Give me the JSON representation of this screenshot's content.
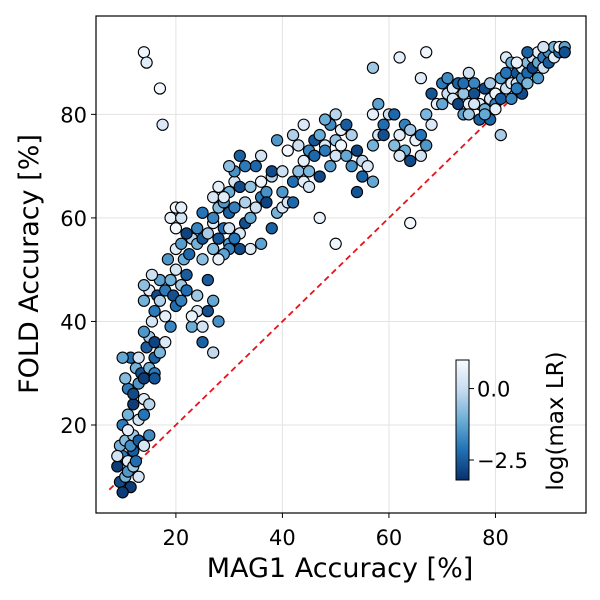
{
  "chart_data": {
    "type": "scatter",
    "title": "",
    "xlabel": "MAG1 Accuracy [%]",
    "ylabel": "FOLD Accuracy [%]",
    "xlim": [
      5,
      97
    ],
    "ylim": [
      3,
      99
    ],
    "xticks": [
      20,
      40,
      60,
      80
    ],
    "yticks": [
      20,
      40,
      60,
      80
    ],
    "grid": true,
    "reference_line": {
      "style": "dashed",
      "color": "#e8121b",
      "from": [
        7.5,
        7.5
      ],
      "to": [
        93.5,
        93.5
      ]
    },
    "colorbar": {
      "label": "log(max LR)",
      "range": [
        -3.2,
        1.0
      ],
      "ticks": [
        0.0,
        -2.5
      ],
      "tick_labels": [
        "0.0",
        "−2.5"
      ],
      "colors": [
        "#08306b",
        "#2171b5",
        "#6baed6",
        "#c6dbef",
        "#f7fbff"
      ]
    },
    "points": [
      [
        14,
        92,
        0.8
      ],
      [
        14.5,
        90,
        0.5
      ],
      [
        17,
        85,
        0.9
      ],
      [
        17.5,
        78,
        0.4
      ],
      [
        9,
        12,
        -3
      ],
      [
        9.5,
        9,
        -2.8
      ],
      [
        10,
        14,
        -2
      ],
      [
        10.5,
        10,
        -1
      ],
      [
        11,
        13,
        0.5
      ],
      [
        11.5,
        8,
        -3
      ],
      [
        12,
        15,
        -2.5
      ],
      [
        9.5,
        16,
        -1
      ],
      [
        10,
        7,
        -3
      ],
      [
        11,
        11,
        -1.5
      ],
      [
        12,
        12,
        -0.5
      ],
      [
        13,
        10,
        0.3
      ],
      [
        12.5,
        13,
        -2.2
      ],
      [
        10.5,
        17,
        -0.8
      ],
      [
        9,
        14,
        0.2
      ],
      [
        11.5,
        16,
        -1.7
      ],
      [
        10,
        20,
        -2
      ],
      [
        11,
        22,
        -1
      ],
      [
        12,
        24,
        -3
      ],
      [
        13,
        21,
        0.2
      ],
      [
        11,
        27,
        -2
      ],
      [
        10.5,
        29,
        -0.8
      ],
      [
        12,
        26,
        -2.8
      ],
      [
        13,
        28,
        -1.5
      ],
      [
        14,
        25,
        0.5
      ],
      [
        12.5,
        31,
        -1
      ],
      [
        11.5,
        33,
        -2.2
      ],
      [
        13.5,
        30,
        -2.7
      ],
      [
        10,
        33,
        -1.2
      ],
      [
        12,
        18,
        -0.5
      ],
      [
        13,
        17,
        -2.5
      ],
      [
        14,
        16,
        0.3
      ],
      [
        15,
        18,
        -1.7
      ],
      [
        14,
        22,
        -2.1
      ],
      [
        15,
        24,
        -0.2
      ],
      [
        11,
        19,
        0.6
      ],
      [
        14,
        29,
        -3
      ],
      [
        15,
        31,
        -1
      ],
      [
        16,
        30,
        -2
      ],
      [
        13,
        33,
        0.2
      ],
      [
        14.5,
        35,
        -2.5
      ],
      [
        15,
        37,
        -0.5
      ],
      [
        16,
        36,
        -2.9
      ],
      [
        14,
        38,
        -1.5
      ],
      [
        15.5,
        40,
        0.3
      ],
      [
        16,
        42,
        -2
      ],
      [
        14,
        44,
        -1
      ],
      [
        15,
        46,
        0.5
      ],
      [
        16.5,
        45,
        -2.8
      ],
      [
        17,
        48,
        -1.3
      ],
      [
        15.5,
        49,
        0.1
      ],
      [
        14,
        47,
        -0.7
      ],
      [
        16,
        33,
        -2.4
      ],
      [
        17,
        34,
        -0.9
      ],
      [
        18,
        36,
        0.4
      ],
      [
        16,
        29,
        -2.6
      ],
      [
        18,
        46,
        -2
      ],
      [
        19,
        48,
        -1
      ],
      [
        20,
        50,
        0.3
      ],
      [
        18.5,
        52,
        -1.5
      ],
      [
        19.5,
        45,
        -2.7
      ],
      [
        21,
        47,
        -0.5
      ],
      [
        20,
        43,
        -2.2
      ],
      [
        18,
        41,
        0.6
      ],
      [
        21.5,
        52,
        -1.1
      ],
      [
        22,
        49,
        -2.5
      ],
      [
        19,
        39,
        -1.8
      ],
      [
        17,
        44,
        -0.3
      ],
      [
        20,
        54,
        0.5
      ],
      [
        21,
        55,
        -1.4
      ],
      [
        22.5,
        53,
        -2.3
      ],
      [
        23,
        56,
        -0.2
      ],
      [
        22,
        57,
        -2.9
      ],
      [
        19,
        60,
        0.7
      ],
      [
        20,
        62,
        0.9
      ],
      [
        21,
        60,
        0.2
      ],
      [
        24,
        55,
        -1
      ],
      [
        25,
        56,
        -2.6
      ],
      [
        26,
        57,
        -0.4
      ],
      [
        24,
        58,
        -1.8
      ],
      [
        27,
        59,
        0.5
      ],
      [
        25,
        61,
        -2.1
      ],
      [
        28,
        62,
        -0.8
      ],
      [
        27,
        64,
        0.3
      ],
      [
        29,
        63,
        -1.5
      ],
      [
        30,
        61,
        -2.4
      ],
      [
        28,
        66,
        0.6
      ],
      [
        30,
        65,
        -1.1
      ],
      [
        31,
        67,
        0.2
      ],
      [
        32,
        66,
        -2.8
      ],
      [
        31,
        62,
        -1.9
      ],
      [
        33,
        63,
        -0.3
      ],
      [
        29,
        58,
        -2.2
      ],
      [
        30,
        55,
        -1.4
      ],
      [
        32,
        57,
        0.4
      ],
      [
        33,
        59,
        -2.7
      ],
      [
        34,
        60,
        -1.2
      ],
      [
        35,
        62,
        0.1
      ],
      [
        36,
        64,
        -2
      ],
      [
        34,
        66,
        -0.6
      ],
      [
        36,
        67,
        0.8
      ],
      [
        37,
        65,
        -1.6
      ],
      [
        35,
        70,
        -2.3
      ],
      [
        38,
        68,
        -0.2
      ],
      [
        37,
        63,
        -2.9
      ],
      [
        39,
        61,
        -1
      ],
      [
        40,
        62,
        0.3
      ],
      [
        38,
        58,
        -2.4
      ],
      [
        36,
        55,
        -1.3
      ],
      [
        34,
        54,
        0.5
      ],
      [
        32,
        54,
        -2.8
      ],
      [
        30,
        54,
        -1.9
      ],
      [
        25,
        52,
        -0.7
      ],
      [
        26,
        48,
        -2.5
      ],
      [
        27,
        44,
        -1.2
      ],
      [
        24,
        42,
        0.4
      ],
      [
        22,
        46,
        -2.2
      ],
      [
        23,
        39,
        -1.1
      ],
      [
        25,
        39,
        0.2
      ],
      [
        26,
        42,
        -2.7
      ],
      [
        24,
        45,
        -0.5
      ],
      [
        28,
        40,
        -1.6
      ],
      [
        27,
        34,
        -0.1
      ],
      [
        25,
        36,
        -2.4
      ],
      [
        23,
        41,
        0.7
      ],
      [
        21,
        44,
        -1.9
      ],
      [
        28,
        56,
        -2.6
      ],
      [
        29,
        53,
        -1.3
      ],
      [
        30,
        58,
        0.2
      ],
      [
        31,
        56,
        -2.1
      ],
      [
        27,
        54,
        -0.8
      ],
      [
        40,
        65,
        -1.5
      ],
      [
        41,
        63,
        0.3
      ],
      [
        42,
        67,
        -2.2
      ],
      [
        43,
        69,
        -0.7
      ],
      [
        44,
        71,
        0.6
      ],
      [
        45,
        73,
        -1.8
      ],
      [
        43,
        74,
        0.1
      ],
      [
        46,
        75,
        -2.6
      ],
      [
        47,
        76,
        -1.1
      ],
      [
        48,
        74,
        0.4
      ],
      [
        46,
        72,
        -2.3
      ],
      [
        45,
        69,
        -0.9
      ],
      [
        44,
        67,
        0.5
      ],
      [
        47,
        68,
        -2.8
      ],
      [
        49,
        70,
        -1.4
      ],
      [
        50,
        72,
        0.2
      ],
      [
        48,
        73,
        -2
      ],
      [
        50,
        75,
        -0.6
      ],
      [
        51,
        77,
        0.7
      ],
      [
        49,
        78,
        -1.7
      ],
      [
        52,
        78,
        -2.5
      ],
      [
        53,
        76,
        -0.3
      ],
      [
        51,
        74,
        0.8
      ],
      [
        52,
        72,
        -1.2
      ],
      [
        54,
        73,
        -2.9
      ],
      [
        55,
        71,
        -0.1
      ],
      [
        53,
        70,
        -1.6
      ],
      [
        56,
        70,
        0.4
      ],
      [
        55,
        68,
        -2.4
      ],
      [
        57,
        74,
        -1
      ],
      [
        58,
        76,
        0.3
      ],
      [
        59,
        78,
        -2.2
      ],
      [
        57,
        80,
        0.6
      ],
      [
        58,
        82,
        -1.3
      ],
      [
        60,
        80,
        0.1
      ],
      [
        59,
        76,
        -2.7
      ],
      [
        61,
        74,
        -0.8
      ],
      [
        62,
        76,
        0.5
      ],
      [
        63,
        78,
        -1.9
      ],
      [
        61,
        80,
        -2.3
      ],
      [
        64,
        77,
        -0.4
      ],
      [
        65,
        75,
        0.7
      ],
      [
        63,
        73,
        -1.1
      ],
      [
        64,
        71,
        -2.8
      ],
      [
        66,
        72,
        0.2
      ],
      [
        67,
        74,
        -1.5
      ],
      [
        66,
        76,
        -2.1
      ],
      [
        68,
        78,
        0.4
      ],
      [
        67,
        80,
        -0.9
      ],
      [
        69,
        82,
        0.6
      ],
      [
        68,
        84,
        -2.6
      ],
      [
        70,
        82,
        -1.2
      ],
      [
        71,
        84,
        0.1
      ],
      [
        70,
        86,
        -2
      ],
      [
        72,
        85,
        0.5
      ],
      [
        71,
        87,
        -1.7
      ],
      [
        73,
        86,
        -2.4
      ],
      [
        72,
        83,
        0.3
      ],
      [
        74,
        84,
        -0.6
      ],
      [
        73,
        82,
        -2.9
      ],
      [
        74,
        80,
        -1.3
      ],
      [
        75,
        82,
        0.7
      ],
      [
        74,
        86,
        -2.2
      ],
      [
        75,
        88,
        0.2
      ],
      [
        76,
        86,
        -1.8
      ],
      [
        76,
        84,
        -2.7
      ],
      [
        75,
        80,
        -0.5
      ],
      [
        77,
        82,
        0.6
      ],
      [
        77,
        79,
        -2.4
      ],
      [
        78,
        81,
        -1
      ],
      [
        79,
        83,
        0.3
      ],
      [
        78,
        85,
        -2.8
      ],
      [
        79,
        86,
        -0.4
      ],
      [
        80,
        84,
        0.8
      ],
      [
        80,
        82,
        -1.9
      ],
      [
        81,
        83,
        -2.5
      ],
      [
        82,
        85,
        0.1
      ],
      [
        81,
        87,
        -1.4
      ],
      [
        82,
        88,
        -2.1
      ],
      [
        83,
        86,
        0.5
      ],
      [
        82,
        91,
        0.4
      ],
      [
        83,
        90,
        -1.1
      ],
      [
        84,
        88,
        -2.6
      ],
      [
        84,
        86,
        0.2
      ],
      [
        85,
        87,
        -1.7
      ],
      [
        85,
        89,
        0.7
      ],
      [
        86,
        88,
        -2.3
      ],
      [
        86,
        90,
        -0.8
      ],
      [
        87,
        91,
        0.3
      ],
      [
        87,
        89,
        -2.9
      ],
      [
        88,
        90,
        -1.2
      ],
      [
        88,
        92,
        0.6
      ],
      [
        89,
        91,
        -2
      ],
      [
        89,
        89,
        0.1
      ],
      [
        90,
        92,
        -1.6
      ],
      [
        90,
        90,
        -2.5
      ],
      [
        91,
        91,
        0.5
      ],
      [
        91,
        93,
        -1
      ],
      [
        92,
        92,
        -2.2
      ],
      [
        92,
        93,
        0.8
      ],
      [
        93,
        93,
        -1.3
      ],
      [
        93,
        92,
        -2.7
      ],
      [
        88,
        87,
        -1.5
      ],
      [
        85,
        84,
        -2.8
      ],
      [
        83,
        83,
        -1.8
      ],
      [
        80,
        81,
        0.6
      ],
      [
        79,
        79,
        -2.3
      ],
      [
        81,
        76,
        -0.4
      ],
      [
        78,
        80,
        -1.2
      ],
      [
        76,
        82,
        0.3
      ],
      [
        84,
        85,
        -2
      ],
      [
        86,
        86,
        -0.9
      ],
      [
        84,
        90,
        0.7
      ],
      [
        86,
        92,
        -2.4
      ],
      [
        89,
        93,
        0.2
      ],
      [
        50,
        55,
        0.8
      ],
      [
        54,
        65,
        -2.6
      ],
      [
        57,
        67,
        -1.2
      ],
      [
        62,
        72,
        0.4
      ],
      [
        64,
        59,
        0.9
      ],
      [
        66,
        87,
        0.5
      ],
      [
        67,
        92,
        0.8
      ],
      [
        62,
        91,
        0.6
      ],
      [
        57,
        89,
        -0.5
      ],
      [
        50,
        80,
        -0.2
      ],
      [
        45,
        66,
        0.3
      ],
      [
        47,
        60,
        0.7
      ],
      [
        42,
        63,
        -2.3
      ],
      [
        44,
        78,
        0.4
      ],
      [
        48,
        79,
        -1.1
      ],
      [
        36,
        72,
        0.2
      ],
      [
        32,
        72,
        -2.4
      ],
      [
        31,
        69,
        -1.6
      ],
      [
        30,
        70,
        -0.7
      ],
      [
        29,
        64,
        0.5
      ],
      [
        38,
        69,
        -2.8
      ],
      [
        40,
        69,
        0.1
      ],
      [
        41,
        73,
        0.9
      ],
      [
        39,
        75,
        -1.5
      ],
      [
        42,
        76,
        -0.3
      ],
      [
        33,
        70,
        -2
      ],
      [
        28,
        52,
        0.7
      ],
      [
        27,
        60,
        -1.8
      ],
      [
        20,
        58,
        0.9
      ],
      [
        21,
        62,
        0.6
      ]
    ]
  }
}
